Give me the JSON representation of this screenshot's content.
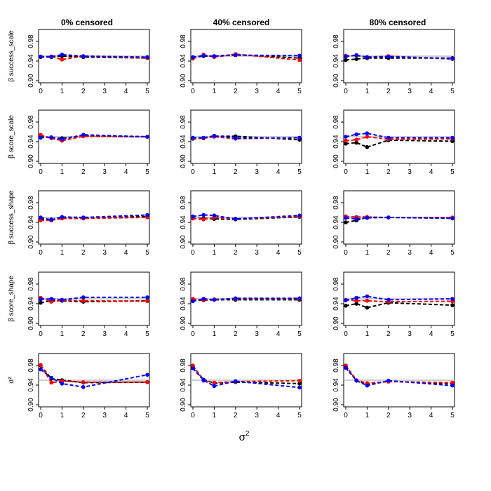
{
  "figure": {
    "column_titles": [
      "0% censored",
      "40% censored",
      "80% censored"
    ],
    "row_labels": [
      "β success_scale",
      "β score_scale",
      "β success_shape",
      "β score_shape",
      "σ²"
    ],
    "x_axis_label": "σ",
    "x_axis_label_sup": "2"
  },
  "colors": {
    "reference": "#bebebe",
    "series_1": "#000000",
    "series_2": "#ff0000",
    "series_3": "#0000ff"
  },
  "chart_data": {
    "type": "line",
    "layout": "5 rows × 3 columns of panels",
    "x": [
      0,
      0.5,
      1,
      2,
      5
    ],
    "x_ticks": [
      "0",
      "1",
      "2",
      "3",
      "4",
      "5"
    ],
    "y_ticks": [
      "0.90",
      "0.94",
      "0.98"
    ],
    "xlim": [
      0,
      5
    ],
    "ylim": [
      0.9,
      1.0
    ],
    "reference_line": 0.95,
    "series_names": [
      "black",
      "red",
      "blue"
    ],
    "panels": [
      {
        "row": "β success_scale",
        "col": "0% censored",
        "series": [
          {
            "name": "black",
            "values": [
              0.948,
              0.948,
              0.95,
              0.948,
              0.946
            ]
          },
          {
            "name": "red",
            "values": [
              0.949,
              0.949,
              0.943,
              0.95,
              0.946
            ]
          },
          {
            "name": "blue",
            "values": [
              0.949,
              0.949,
              0.953,
              0.95,
              0.948
            ]
          }
        ]
      },
      {
        "row": "β success_scale",
        "col": "40% censored",
        "series": [
          {
            "name": "black",
            "values": [
              0.947,
              0.95,
              0.95,
              0.953,
              0.946
            ]
          },
          {
            "name": "red",
            "values": [
              0.945,
              0.953,
              0.948,
              0.954,
              0.942
            ]
          },
          {
            "name": "blue",
            "values": [
              0.948,
              0.951,
              0.95,
              0.952,
              0.951
            ]
          }
        ]
      },
      {
        "row": "β success_scale",
        "col": "80% censored",
        "series": [
          {
            "name": "black",
            "values": [
              0.942,
              0.944,
              0.946,
              0.946,
              0.946
            ]
          },
          {
            "name": "red",
            "values": [
              0.951,
              0.951,
              0.948,
              0.95,
              0.944
            ]
          },
          {
            "name": "blue",
            "values": [
              0.949,
              0.952,
              0.948,
              0.949,
              0.945
            ]
          }
        ]
      },
      {
        "row": "β score_scale",
        "col": "0% censored",
        "series": [
          {
            "name": "black",
            "values": [
              0.95,
              0.948,
              0.947,
              0.952,
              0.95
            ]
          },
          {
            "name": "red",
            "values": [
              0.954,
              0.947,
              0.942,
              0.951,
              0.95
            ]
          },
          {
            "name": "blue",
            "values": [
              0.948,
              0.949,
              0.945,
              0.954,
              0.95
            ]
          }
        ]
      },
      {
        "row": "β score_scale",
        "col": "40% censored",
        "series": [
          {
            "name": "black",
            "values": [
              0.946,
              0.947,
              0.951,
              0.951,
              0.944
            ]
          },
          {
            "name": "red",
            "values": [
              0.947,
              0.947,
              0.95,
              0.946,
              0.948
            ]
          },
          {
            "name": "blue",
            "values": [
              0.948,
              0.948,
              0.952,
              0.947,
              0.948
            ]
          }
        ]
      },
      {
        "row": "β score_scale",
        "col": "80% censored",
        "series": [
          {
            "name": "black",
            "values": [
              0.936,
              0.938,
              0.929,
              0.943,
              0.941
            ]
          },
          {
            "name": "red",
            "values": [
              0.942,
              0.944,
              0.95,
              0.945,
              0.946
            ]
          },
          {
            "name": "blue",
            "values": [
              0.95,
              0.955,
              0.957,
              0.948,
              0.948
            ]
          }
        ]
      },
      {
        "row": "β success_shape",
        "col": "0% censored",
        "series": [
          {
            "name": "black",
            "values": [
              0.946,
              0.946,
              0.948,
              0.948,
              0.952
            ]
          },
          {
            "name": "red",
            "values": [
              0.944,
              0.944,
              0.948,
              0.948,
              0.95
            ]
          },
          {
            "name": "blue",
            "values": [
              0.95,
              0.945,
              0.951,
              0.95,
              0.955
            ]
          }
        ]
      },
      {
        "row": "β success_shape",
        "col": "40% censored",
        "series": [
          {
            "name": "black",
            "values": [
              0.948,
              0.948,
              0.947,
              0.946,
              0.951
            ]
          },
          {
            "name": "red",
            "values": [
              0.948,
              0.946,
              0.95,
              0.947,
              0.952
            ]
          },
          {
            "name": "blue",
            "values": [
              0.952,
              0.955,
              0.954,
              0.947,
              0.954
            ]
          }
        ]
      },
      {
        "row": "β success_shape",
        "col": "80% censored",
        "series": [
          {
            "name": "black",
            "values": [
              0.94,
              0.944,
              0.95,
              0.95,
              0.949
            ]
          },
          {
            "name": "red",
            "values": [
              0.952,
              0.951,
              0.951,
              0.95,
              0.95
            ]
          },
          {
            "name": "blue",
            "values": [
              0.949,
              0.947,
              0.949,
              0.95,
              0.948
            ]
          }
        ]
      },
      {
        "row": "β score_shape",
        "col": "0% censored",
        "series": [
          {
            "name": "black",
            "values": [
              0.942,
              0.946,
              0.946,
              0.944,
              0.946
            ]
          },
          {
            "name": "red",
            "values": [
              0.952,
              0.944,
              0.947,
              0.946,
              0.945
            ]
          },
          {
            "name": "blue",
            "values": [
              0.949,
              0.95,
              0.948,
              0.953,
              0.953
            ]
          }
        ]
      },
      {
        "row": "β score_shape",
        "col": "40% censored",
        "series": [
          {
            "name": "black",
            "values": [
              0.947,
              0.947,
              0.948,
              0.948,
              0.948
            ]
          },
          {
            "name": "red",
            "values": [
              0.95,
              0.947,
              0.949,
              0.95,
              0.95
            ]
          },
          {
            "name": "blue",
            "values": [
              0.945,
              0.95,
              0.948,
              0.951,
              0.951
            ]
          }
        ]
      },
      {
        "row": "β score_shape",
        "col": "80% censored",
        "series": [
          {
            "name": "black",
            "values": [
              0.936,
              0.94,
              0.932,
              0.942,
              0.937
            ]
          },
          {
            "name": "red",
            "values": [
              0.948,
              0.946,
              0.946,
              0.944,
              0.945
            ]
          },
          {
            "name": "blue",
            "values": [
              0.947,
              0.952,
              0.955,
              0.948,
              0.95
            ]
          }
        ]
      },
      {
        "row": "σ²",
        "col": "0% censored",
        "series": [
          {
            "name": "black",
            "values": [
              0.98,
              0.953,
              0.95,
              0.945,
              0.946
            ]
          },
          {
            "name": "red",
            "values": [
              0.981,
              0.945,
              0.948,
              0.946,
              0.946
            ]
          },
          {
            "name": "blue",
            "values": [
              0.972,
              0.955,
              0.943,
              0.936,
              0.961
            ]
          }
        ]
      },
      {
        "row": "σ²",
        "col": "40% censored",
        "series": [
          {
            "name": "black",
            "values": [
              0.978,
              0.951,
              0.944,
              0.946,
              0.943
            ]
          },
          {
            "name": "red",
            "values": [
              0.98,
              0.949,
              0.945,
              0.947,
              0.949
            ]
          },
          {
            "name": "blue",
            "values": [
              0.974,
              0.95,
              0.938,
              0.948,
              0.935
            ]
          }
        ]
      },
      {
        "row": "σ²",
        "col": "80% censored",
        "series": [
          {
            "name": "black",
            "values": [
              0.978,
              0.949,
              0.942,
              0.948,
              0.943
            ]
          },
          {
            "name": "red",
            "values": [
              0.98,
              0.95,
              0.944,
              0.947,
              0.945
            ]
          },
          {
            "name": "blue",
            "values": [
              0.975,
              0.949,
              0.939,
              0.949,
              0.939
            ]
          }
        ]
      }
    ]
  }
}
